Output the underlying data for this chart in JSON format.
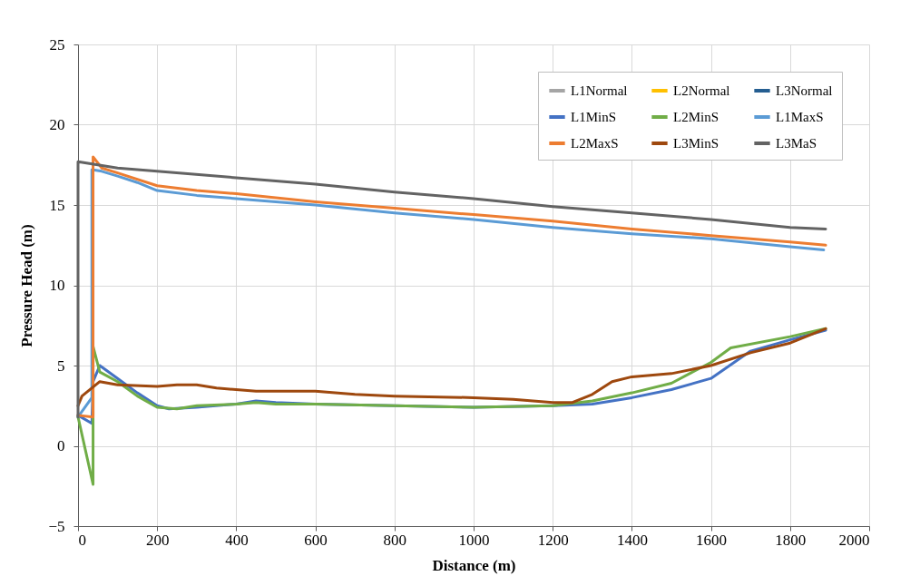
{
  "chart_data": {
    "type": "line",
    "xlabel": "Distance (m)",
    "ylabel": "Pressure Head (m)",
    "xlim": [
      0,
      2000
    ],
    "xticks": [
      0,
      200,
      400,
      600,
      800,
      1000,
      1200,
      1400,
      1600,
      1800,
      2000
    ],
    "ylim": [
      -5,
      25
    ],
    "yticks": [
      -5,
      0,
      5,
      10,
      15,
      20,
      25
    ],
    "grid": true,
    "legend": "top right",
    "line_style": "solid",
    "marker": "none",
    "series": [
      {
        "name": "L1Normal",
        "color": "#a5a5a5"
      },
      {
        "name": "L2Normal",
        "color": "#ffc000"
      },
      {
        "name": "L3Normal",
        "color": "#255e91"
      },
      {
        "name": "L1MinS",
        "color": "#4472c4",
        "x": [
          0,
          35,
          38,
          55,
          100,
          150,
          200,
          230,
          300,
          400,
          450,
          500,
          600,
          800,
          1000,
          1200,
          1300,
          1400,
          1500,
          1600,
          1700,
          1800,
          1890
        ],
        "values": [
          1.9,
          1.4,
          4.0,
          5.0,
          4.2,
          3.3,
          2.5,
          2.3,
          2.4,
          2.6,
          2.8,
          2.7,
          2.6,
          2.5,
          2.4,
          2.5,
          2.6,
          3.0,
          3.5,
          4.2,
          5.9,
          6.6,
          7.2
        ]
      },
      {
        "name": "L2MinS",
        "color": "#70ad47",
        "x": [
          0,
          38,
          38,
          55,
          100,
          150,
          200,
          250,
          300,
          400,
          450,
          500,
          600,
          800,
          1000,
          1200,
          1300,
          1400,
          1500,
          1600,
          1650,
          1800,
          1890
        ],
        "values": [
          1.8,
          -2.4,
          6.2,
          4.6,
          4.0,
          3.1,
          2.4,
          2.3,
          2.5,
          2.6,
          2.7,
          2.6,
          2.6,
          2.5,
          2.4,
          2.5,
          2.8,
          3.3,
          3.9,
          5.2,
          6.1,
          6.8,
          7.3
        ]
      },
      {
        "name": "L1MaxS",
        "color": "#5b9bd5",
        "x": [
          0,
          35,
          35,
          60,
          100,
          150,
          200,
          300,
          400,
          600,
          800,
          1000,
          1200,
          1400,
          1600,
          1800,
          1885
        ],
        "values": [
          1.8,
          3.0,
          17.2,
          17.1,
          16.8,
          16.4,
          15.9,
          15.6,
          15.4,
          15.0,
          14.5,
          14.1,
          13.6,
          13.2,
          12.9,
          12.4,
          12.2
        ]
      },
      {
        "name": "L2MaxS",
        "color": "#ed7d31",
        "x": [
          0,
          38,
          38,
          60,
          100,
          200,
          300,
          400,
          600,
          800,
          1000,
          1200,
          1400,
          1600,
          1800,
          1890
        ],
        "values": [
          1.9,
          1.8,
          18.0,
          17.3,
          17.0,
          16.2,
          15.9,
          15.7,
          15.2,
          14.8,
          14.4,
          14.0,
          13.5,
          13.1,
          12.7,
          12.5
        ]
      },
      {
        "name": "L3MinS",
        "color": "#9e480e",
        "x": [
          0,
          10,
          55,
          100,
          200,
          250,
          300,
          350,
          450,
          600,
          700,
          800,
          1000,
          1100,
          1200,
          1250,
          1300,
          1350,
          1400,
          1500,
          1600,
          1700,
          1800,
          1890
        ],
        "values": [
          2.5,
          3.1,
          4.0,
          3.8,
          3.7,
          3.8,
          3.8,
          3.6,
          3.4,
          3.4,
          3.2,
          3.1,
          3.0,
          2.9,
          2.7,
          2.7,
          3.2,
          4.0,
          4.3,
          4.5,
          5.0,
          5.8,
          6.4,
          7.3
        ]
      },
      {
        "name": "L3MaS",
        "color": "#636363",
        "x": [
          0,
          0,
          100,
          200,
          400,
          600,
          800,
          1000,
          1200,
          1400,
          1600,
          1800,
          1890
        ],
        "values": [
          1.8,
          17.7,
          17.3,
          17.1,
          16.7,
          16.3,
          15.8,
          15.4,
          14.9,
          14.5,
          14.1,
          13.6,
          13.5
        ]
      }
    ]
  }
}
